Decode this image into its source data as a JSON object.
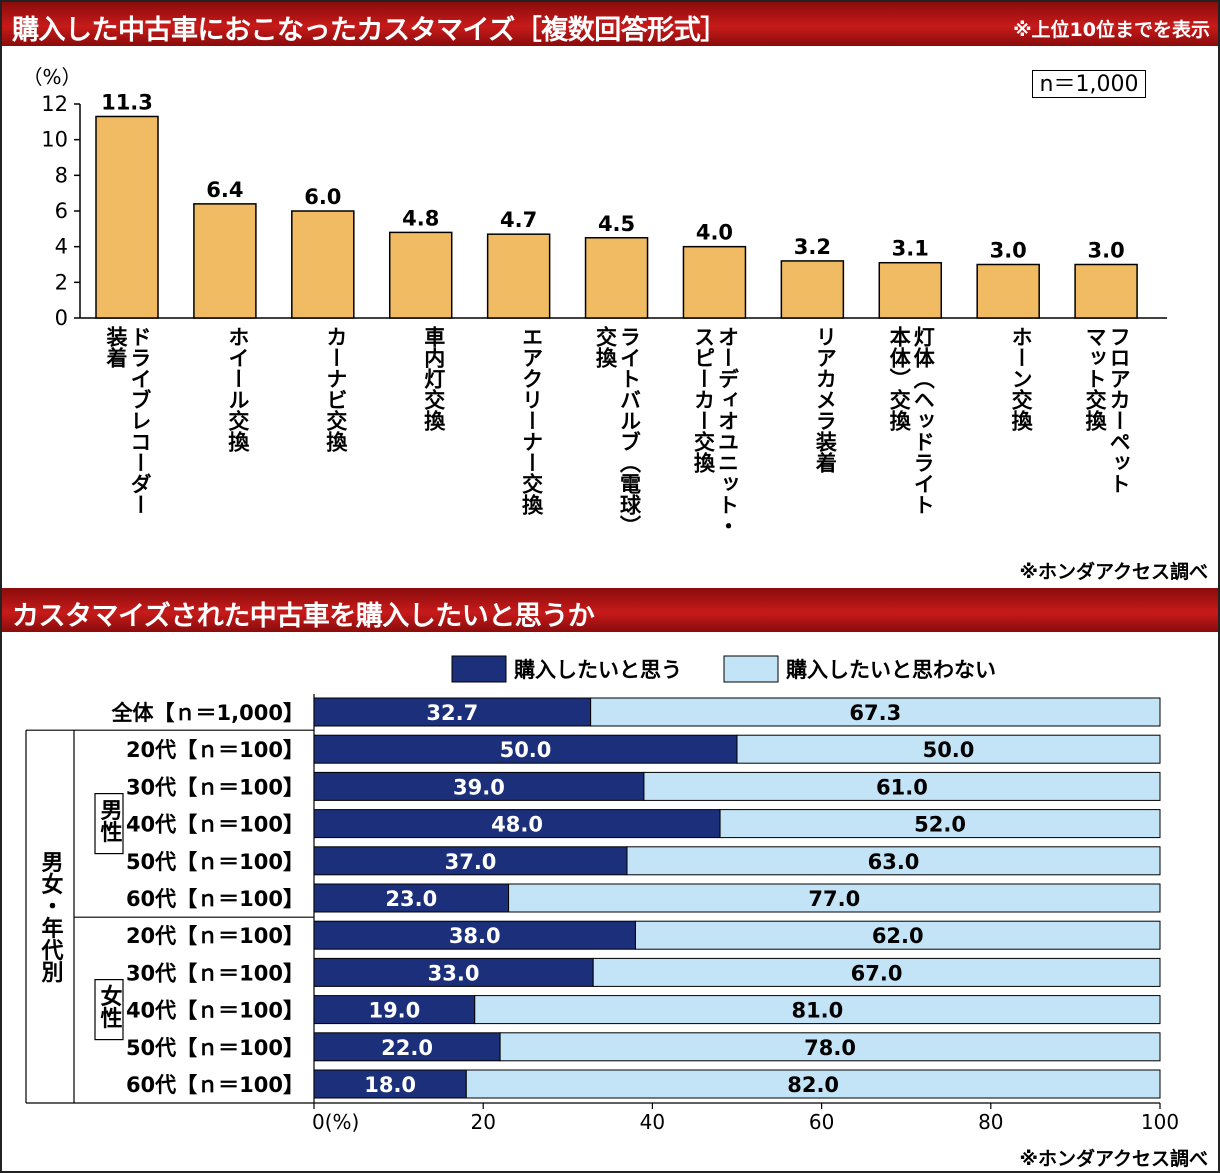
{
  "chart_data": [
    {
      "type": "bar",
      "title": "購入した中古車におこなったカスタマイズ［複数回答形式］",
      "note": "※上位10位までを表示",
      "sample": "n＝1,000",
      "ylabel": "（%）",
      "ylim": [
        0,
        12
      ],
      "yticks": [
        0,
        2,
        4,
        6,
        8,
        10,
        12
      ],
      "categories": [
        "ドライブレコーダー装着",
        "ホイール交換",
        "カーナビ交換",
        "車内灯交換",
        "エアクリーナー交換",
        "ライトバルブ（電球）交換",
        "オーディオユニット・スピーカー交換",
        "リアカメラ装着",
        "灯体（ヘッドライト本体）交換",
        "ホーン交換",
        "フロアカーペットマット交換"
      ],
      "category_lines": [
        [
          "ドライブレコーダー",
          "装着"
        ],
        [
          "ホイール交換"
        ],
        [
          "カーナビ交換"
        ],
        [
          "車内灯交換"
        ],
        [
          "エアクリーナー交換"
        ],
        [
          "ライトバルブ（電球）",
          "交換"
        ],
        [
          "オーディオユニット・",
          "スピーカー交換"
        ],
        [
          "リアカメラ装着"
        ],
        [
          "灯体（ヘッドライト",
          "本体）交換"
        ],
        [
          "ホーン交換"
        ],
        [
          "フロアカーペット",
          "マット交換"
        ]
      ],
      "values": [
        11.3,
        6.4,
        6.0,
        4.8,
        4.7,
        4.5,
        4.0,
        3.2,
        3.1,
        3.0,
        3.0
      ],
      "value_labels": [
        "11.3",
        "6.4",
        "6.0",
        "4.8",
        "4.7",
        "4.5",
        "4.0",
        "3.2",
        "3.1",
        "3.0",
        "3.0"
      ],
      "bar_color": "#f0bb63",
      "source": "※ホンダアクセス調べ"
    },
    {
      "type": "bar",
      "orientation": "horizontal",
      "stacked": true,
      "title": "カスタマイズされた中古車を購入したいと思うか",
      "xlim": [
        0,
        100
      ],
      "xticks": [
        0,
        20,
        40,
        60,
        80,
        100
      ],
      "xtick_labels": [
        "0(%)",
        "20",
        "40",
        "60",
        "80",
        "100"
      ],
      "legend_position": "top",
      "series": [
        {
          "name": "購入したいと思う",
          "color": "#1b2f7a",
          "values": [
            32.7,
            50.0,
            39.0,
            48.0,
            37.0,
            23.0,
            38.0,
            33.0,
            19.0,
            22.0,
            18.0
          ]
        },
        {
          "name": "購入したいと思わない",
          "color": "#c3e3f6",
          "values": [
            67.3,
            50.0,
            61.0,
            52.0,
            63.0,
            77.0,
            62.0,
            67.0,
            81.0,
            78.0,
            82.0
          ]
        }
      ],
      "value_labels": [
        [
          "32.7",
          "50.0",
          "39.0",
          "48.0",
          "37.0",
          "23.0",
          "38.0",
          "33.0",
          "19.0",
          "22.0",
          "18.0"
        ],
        [
          "67.3",
          "50.0",
          "61.0",
          "52.0",
          "63.0",
          "77.0",
          "62.0",
          "67.0",
          "81.0",
          "78.0",
          "82.0"
        ]
      ],
      "categories": [
        "全体【ｎ＝1,000】",
        "20代【ｎ＝100】",
        "30代【ｎ＝100】",
        "40代【ｎ＝100】",
        "50代【ｎ＝100】",
        "60代【ｎ＝100】",
        "20代【ｎ＝100】",
        "30代【ｎ＝100】",
        "40代【ｎ＝100】",
        "50代【ｎ＝100】",
        "60代【ｎ＝100】"
      ],
      "group_label": "男女・年代別",
      "groups": [
        {
          "label": "男性",
          "from": 1,
          "to": 5
        },
        {
          "label": "女性",
          "from": 6,
          "to": 10
        }
      ],
      "source": "※ホンダアクセス調べ"
    }
  ]
}
